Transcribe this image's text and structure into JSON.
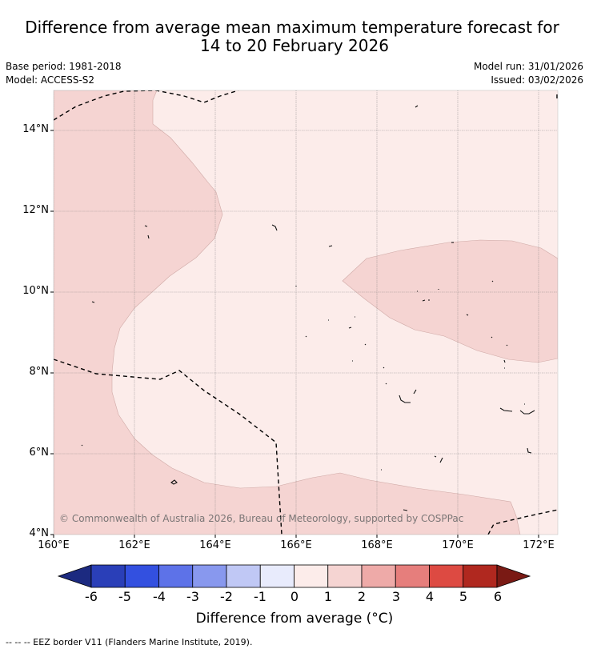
{
  "title": {
    "line1": "Difference from average mean maximum temperature forecast for",
    "line2": "14 to 20 February 2026"
  },
  "meta": {
    "base_period": "Base period: 1981-2018",
    "model": "Model: ACCESS-S2",
    "model_run": "Model run: 31/01/2026",
    "issued": "Issued: 03/02/2026"
  },
  "map": {
    "lat_labels": [
      "14°N",
      "12°N",
      "10°N",
      "8°N",
      "6°N",
      "4°N"
    ],
    "lon_labels": [
      "160°E",
      "162°E",
      "164°E",
      "166°E",
      "168°E",
      "170°E",
      "172°E"
    ],
    "copyright": "© Commonwealth of Australia 2026, Bureau of Meteorology, supported by COSPPac"
  },
  "colorbar": {
    "ticks": [
      "-6",
      "-5",
      "-4",
      "-3",
      "-2",
      "-1",
      "0",
      "1",
      "2",
      "3",
      "4",
      "5",
      "6"
    ],
    "colors": [
      "#1c2a80",
      "#2a3fb8",
      "#3350e0",
      "#5d72e8",
      "#8898ee",
      "#c0c8f5",
      "#e8ebfc",
      "#fcecea",
      "#f5d4d2",
      "#eeaaa8",
      "#e67e7c",
      "#dd4a42",
      "#b0281f",
      "#7a1a14"
    ],
    "title": "Difference from average (°C)"
  },
  "footer": "--  --  -- EEZ border V11 (Flanders Marine Institute, 2019)."
}
